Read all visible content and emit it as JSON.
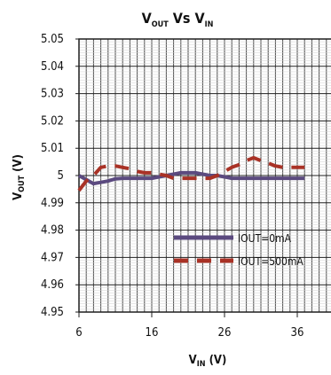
{
  "chart_data": {
    "type": "line",
    "title": {
      "main": "V",
      "sub1": "OUT",
      "mid": " Vs  V",
      "sub2": "IN"
    },
    "xlabel": {
      "main": "V",
      "sub": "IN",
      "unit": " (V)"
    },
    "ylabel": {
      "main": "V",
      "sub": "OUT",
      "unit": " (V)"
    },
    "xlim": [
      6,
      41
    ],
    "ylim": [
      4.95,
      5.05
    ],
    "x_minor_step": 1,
    "y_minor_step": 0.001,
    "xticks": [
      6,
      16,
      26,
      36
    ],
    "xtick_labels": [
      "6",
      "16",
      "26",
      "36"
    ],
    "yticks": [
      4.95,
      4.96,
      4.97,
      4.98,
      4.99,
      5.0,
      5.01,
      5.02,
      5.03,
      5.04,
      5.05
    ],
    "ytick_labels": [
      "4.95",
      "4.96",
      "4.97",
      "4.98",
      "4.99",
      "5",
      "5.01",
      "5.02",
      "5.03",
      "5.04",
      "5.05"
    ],
    "grid": true,
    "legend_position": "bottom-right",
    "series": [
      {
        "name": "IOUT=0mA",
        "color": "#5b4a7f",
        "style": "solid",
        "x": [
          6,
          7,
          8,
          9,
          10,
          11,
          12,
          13,
          14,
          15,
          16,
          17,
          18,
          19,
          20,
          21,
          22,
          23,
          24,
          25,
          26,
          27,
          28,
          29,
          30,
          31,
          32,
          33,
          34,
          35,
          36,
          37
        ],
        "y": [
          5.0,
          4.9985,
          4.997,
          4.9975,
          4.998,
          4.9988,
          4.999,
          4.999,
          4.999,
          4.999,
          4.999,
          4.9995,
          5.0,
          5.0005,
          5.001,
          5.001,
          5.001,
          5.0005,
          5.0,
          5.0,
          4.9995,
          4.999,
          4.999,
          4.999,
          4.999,
          4.999,
          4.999,
          4.999,
          4.999,
          4.999,
          4.999,
          4.999
        ]
      },
      {
        "name": "IOUT=500mA",
        "color": "#a93226",
        "style": "dashed",
        "x": [
          6,
          7,
          8,
          9,
          10,
          11,
          12,
          13,
          14,
          15,
          16,
          17,
          18,
          19,
          20,
          21,
          22,
          23,
          24,
          25,
          26,
          27,
          28,
          29,
          30,
          31,
          32,
          33,
          34,
          35,
          36,
          37
        ],
        "y": [
          4.9945,
          4.998,
          5.0,
          5.003,
          5.0035,
          5.0035,
          5.003,
          5.0025,
          5.0015,
          5.001,
          5.001,
          5.0005,
          5.0,
          4.999,
          4.999,
          4.999,
          4.999,
          4.999,
          4.999,
          5.0,
          5.0015,
          5.003,
          5.004,
          5.0055,
          5.0065,
          5.0055,
          5.0045,
          5.0035,
          5.003,
          5.003,
          5.003,
          5.003
        ]
      }
    ]
  }
}
